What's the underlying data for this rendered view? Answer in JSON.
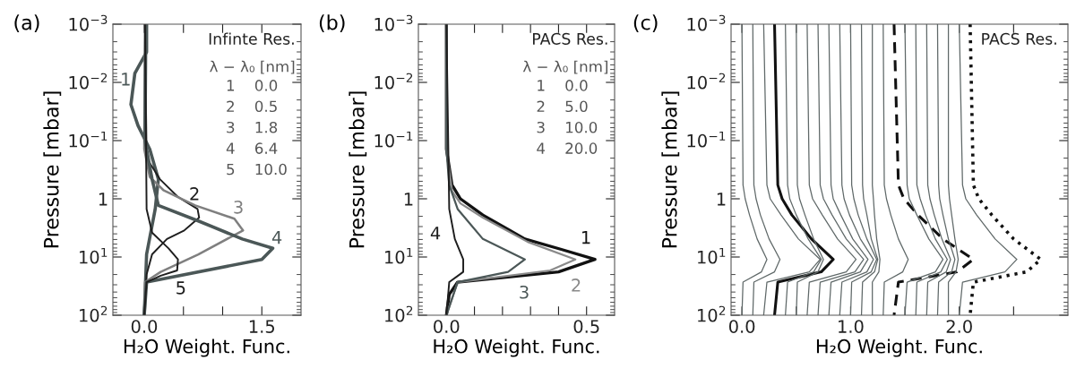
{
  "chart_data": [
    {
      "type": "line",
      "title": "(a)",
      "xlabel": "H₂O Weight. Func.",
      "ylabel": "Pressure [mbar]",
      "log": "y",
      "xlim": [
        -0.4,
        2.0
      ],
      "ylim": [
        100,
        0.001
      ],
      "xticks": [
        {
          "value": 0,
          "label": "0.0"
        },
        {
          "value": 0.5,
          "label": null
        },
        {
          "value": 1.0,
          "label": null
        },
        {
          "value": 1.5,
          "label": "1.5"
        }
      ],
      "yticks": [
        {
          "value": 100,
          "label": "10$^{2}$"
        },
        {
          "value": 10,
          "label": "10$^{1}$"
        },
        1,
        {
          "value": 0.1,
          "label": "10$^{−1}$"
        },
        {
          "value": 0.01,
          "label": "10$^{−2}$"
        },
        {
          "value": 0.001,
          "label": "10$^{−3}$"
        }
      ],
      "series": [
        {
          "color": "#4b5757",
          "x": [
            0.03,
            0.03,
            -0.12,
            -0.17,
            -0.08,
            0.07,
            0.18,
            0.14,
            0.03,
            0
          ],
          "values": [
            0.001,
            0.003,
            0.007,
            0.024,
            0.055,
            0.14,
            0.46,
            1.5,
            9,
            100
          ]
        },
        {
          "color": "#1e1e1e",
          "x": [
            0.01,
            0.03,
            0.2,
            0.43,
            0.68,
            0.7,
            0.51,
            0.29,
            0.1,
            0.03,
            0
          ],
          "values": [
            0.001,
            0.2,
            0.46,
            0.93,
            1.5,
            2.1,
            3.5,
            4.9,
            9,
            20,
            100
          ]
        },
        {
          "color": "#7f7f7f",
          "x": [
            0.01,
            0,
            0.07,
            0.25,
            0.65,
            1.15,
            1.26,
            0.69,
            0.21,
            0.01,
            0
          ],
          "values": [
            0.001,
            0.14,
            0.42,
            0.72,
            1.3,
            2.2,
            3.5,
            9,
            18,
            27,
            100
          ]
        },
        {
          "color": "#4b5757",
          "x": [
            0.02,
            0.01,
            0.1,
            0.18,
            0.69,
            1.25,
            1.64,
            1.5,
            0.03,
            0
          ],
          "values": [
            0.001,
            0.1,
            0.46,
            1.3,
            2.4,
            4.9,
            7.1,
            11,
            27,
            100
          ]
        },
        {
          "color": "#1e1e1e",
          "x": [
            0.01,
            0.03,
            0.1,
            0.31,
            0.43,
            0.42,
            0.21,
            0.03,
            0
          ],
          "values": [
            0.001,
            1.5,
            3.8,
            7.1,
            11,
            17,
            21,
            27,
            100
          ]
        }
      ],
      "annotations": [
        "1",
        "2",
        "3",
        "4",
        "5",
        "Infinte Res.",
        "λ − λ₀ [nm]",
        "1    0.0",
        "2    0.5",
        "3    1.8",
        "4    6.4",
        "5    10.0"
      ]
    },
    {
      "type": "line",
      "title": "(b)",
      "xlabel": "H₂O Weight. Func.",
      "ylabel": "Pressure [mbar]",
      "log": "y",
      "xlim": [
        -0.1,
        0.6
      ],
      "ylim": [
        100,
        0.001
      ],
      "xticks": [
        {
          "value": 0,
          "label": "0.0"
        },
        {
          "value": 0.1,
          "label": null
        },
        {
          "value": 0.2,
          "label": null
        },
        {
          "value": 0.3,
          "label": null
        },
        {
          "value": 0.4,
          "label": null
        },
        {
          "value": 0.5,
          "label": "0.5"
        }
      ],
      "yticks": [
        {
          "value": 100,
          "label": "10$^{2}$"
        },
        {
          "value": 10,
          "label": "10$^{1}$"
        },
        1,
        {
          "value": 0.1,
          "label": "10$^{−1}$"
        },
        {
          "value": 0.01,
          "label": "10$^{−2}$"
        },
        {
          "value": 0.001,
          "label": "10$^{−3}$"
        }
      ],
      "series": [
        {
          "color": "#111111",
          "x": [
            0,
            0,
            0.02,
            0.05,
            0.13,
            0.28,
            0.41,
            0.53,
            0.4,
            0.04,
            0.01,
            0
          ],
          "values": [
            0.001,
            0.14,
            0.58,
            1,
            1.9,
            4.9,
            7.4,
            11,
            18,
            27,
            44,
            100
          ]
        },
        {
          "color": "#8a8a8a",
          "x": [
            0,
            0,
            0.02,
            0.05,
            0.13,
            0.29,
            0.46,
            0.37,
            0.04,
            0
          ],
          "values": [
            0.001,
            0.14,
            0.74,
            1.2,
            2.1,
            5.5,
            11,
            17,
            27,
            100
          ]
        },
        {
          "color": "#4b5757",
          "x": [
            0,
            0,
            0.01,
            0.04,
            0.13,
            0.28,
            0.22,
            0.04,
            0
          ],
          "values": [
            0.001,
            0.14,
            0.58,
            1.5,
            4.9,
            11,
            18,
            27,
            100
          ]
        },
        {
          "color": "#1e1e1e",
          "x": [
            0,
            0.01,
            0.03,
            0.06,
            0.06,
            0.01,
            0
          ],
          "values": [
            0.001,
            1.5,
            4.9,
            11,
            18,
            27,
            100
          ]
        }
      ],
      "annotations": [
        "1",
        "2",
        "3",
        "4",
        "PACS Res.",
        "λ − λ₀ [nm]",
        "1    0.0",
        "2    5.0",
        "3    10.0",
        "4    20.0"
      ]
    },
    {
      "type": "line",
      "title": "(c)",
      "xlabel": "H₂O Weight. Func.",
      "ylabel": "Pressure [mbar]",
      "log": "y",
      "xlim": [
        -0.1,
        3.0
      ],
      "ylim": [
        100,
        0.001
      ],
      "xticks": [
        {
          "value": 0,
          "label": "0.0"
        },
        {
          "value": 0.5,
          "label": null
        },
        {
          "value": 1.0,
          "label": "1.0"
        },
        {
          "value": 1.5,
          "label": null
        },
        {
          "value": 2.0,
          "label": "2.0"
        },
        {
          "value": 2.5,
          "label": null
        }
      ],
      "yticks": [
        {
          "value": 100,
          "label": "10$^{2}$"
        },
        {
          "value": 10,
          "label": "10$^{1}$"
        },
        1,
        {
          "value": 0.1,
          "label": "10$^{−1}$"
        },
        {
          "value": 0.01,
          "label": "10$^{−2}$"
        },
        {
          "value": 0.001,
          "label": "10$^{−3}$"
        }
      ],
      "series": [
        {
          "color": "#5f6868",
          "x": [
            0,
            0.01,
            0.03,
            0.07,
            0.14,
            0.23,
            0.18,
            0.01,
            0
          ],
          "values": [
            0.001,
            0.58,
            1,
            1.9,
            4.9,
            11,
            18,
            27,
            100
          ]
        },
        {
          "color": "#5f6868",
          "x": [
            0.1,
            0.11,
            0.13,
            0.17,
            0.25,
            0.35,
            0.3,
            0.11,
            0.1
          ],
          "values": [
            0.001,
            0.58,
            1,
            1.9,
            4.9,
            11,
            18,
            27,
            100
          ]
        },
        {
          "color": "#5f6868",
          "x": [
            0.2,
            0.23,
            0.26,
            0.36,
            0.52,
            0.72,
            0.62,
            0.23,
            0.2
          ],
          "values": [
            0.001,
            0.58,
            1,
            1.9,
            4.9,
            11,
            18,
            27,
            100
          ]
        },
        {
          "color": "#111111",
          "x": [
            0.3,
            0.33,
            0.37,
            0.46,
            0.64,
            0.84,
            0.73,
            0.33,
            0.3
          ],
          "values": [
            0.001,
            0.58,
            1,
            1.9,
            4.9,
            11,
            18,
            27,
            100
          ]
        },
        {
          "color": "#5f6868",
          "x": [
            0.4,
            0.42,
            0.44,
            0.5,
            0.61,
            0.73,
            0.66,
            0.42,
            0.4
          ],
          "values": [
            0.001,
            0.58,
            1,
            1.9,
            4.9,
            11,
            18,
            27,
            100
          ]
        },
        {
          "color": "#5f6868",
          "x": [
            0.5,
            0.51,
            0.53,
            0.58,
            0.66,
            0.75,
            0.7,
            0.51,
            0.5
          ],
          "values": [
            0.001,
            0.58,
            1,
            1.9,
            4.9,
            11,
            18,
            27,
            100
          ]
        },
        {
          "color": "#5f6868",
          "x": [
            0.6,
            0.62,
            0.65,
            0.74,
            0.88,
            1.05,
            0.96,
            0.62,
            0.6
          ],
          "values": [
            0.001,
            0.58,
            1,
            1.9,
            4.9,
            11,
            18,
            27,
            100
          ]
        },
        {
          "color": "#5f6868",
          "x": [
            0.7,
            0.72,
            0.75,
            0.83,
            0.96,
            1.12,
            1.04,
            0.72,
            0.7
          ],
          "values": [
            0.001,
            0.58,
            1,
            1.9,
            4.9,
            11,
            18,
            27,
            100
          ]
        },
        {
          "color": "#5f6868",
          "x": [
            0.8,
            0.82,
            0.84,
            0.91,
            1.02,
            1.16,
            1.09,
            0.82,
            0.8
          ],
          "values": [
            0.001,
            0.58,
            1,
            1.9,
            4.9,
            11,
            18,
            27,
            100
          ]
        },
        {
          "color": "#5f6868",
          "x": [
            0.9,
            0.92,
            0.94,
            0.99,
            1.09,
            1.21,
            1.15,
            0.92,
            0.9
          ],
          "values": [
            0.001,
            0.58,
            1,
            1.9,
            4.9,
            11,
            18,
            27,
            100
          ]
        },
        {
          "color": "#5f6868",
          "x": [
            1.0,
            1.01,
            1.03,
            1.07,
            1.15,
            1.24,
            1.19,
            1.01,
            1.0
          ],
          "values": [
            0.001,
            0.58,
            1,
            1.9,
            4.9,
            11,
            18,
            27,
            100
          ]
        },
        {
          "color": "#5f6868",
          "x": [
            1.1,
            1.11,
            1.12,
            1.15,
            1.19,
            1.25,
            1.22,
            1.11,
            1.1
          ],
          "values": [
            0.001,
            0.58,
            1,
            1.9,
            4.9,
            11,
            18,
            27,
            100
          ]
        },
        {
          "color": "#5f6868",
          "x": [
            1.2,
            1.2,
            1.21,
            1.22,
            1.24,
            1.27,
            1.26,
            1.2,
            1.2
          ],
          "values": [
            0.001,
            0.58,
            1,
            1.9,
            4.9,
            11,
            18,
            27,
            100
          ]
        },
        {
          "color": "#5f6868",
          "x": [
            1.3,
            1.31,
            1.33,
            1.37,
            1.44,
            1.53,
            1.48,
            1.31,
            1.3
          ],
          "values": [
            0.001,
            0.58,
            1,
            1.9,
            4.9,
            11,
            18,
            27,
            100
          ]
        },
        {
          "color": "#111111",
          "line_style": "dashed",
          "x": [
            1.4,
            1.44,
            1.49,
            1.62,
            1.85,
            2.13,
            1.98,
            1.44,
            1.4
          ],
          "values": [
            0.001,
            0.58,
            1,
            1.9,
            4.9,
            11,
            18,
            27,
            100
          ]
        },
        {
          "color": "#5f6868",
          "x": [
            1.5,
            1.52,
            1.54,
            1.61,
            1.72,
            1.85,
            1.78,
            1.52,
            1.5
          ],
          "values": [
            0.001,
            0.58,
            1,
            1.9,
            4.9,
            11,
            18,
            27,
            100
          ]
        },
        {
          "color": "#5f6868",
          "x": [
            1.6,
            1.61,
            1.64,
            1.69,
            1.78,
            1.89,
            1.83,
            1.61,
            1.6
          ],
          "values": [
            0.001,
            0.58,
            1,
            1.9,
            4.9,
            11,
            18,
            27,
            100
          ]
        },
        {
          "color": "#5f6868",
          "x": [
            1.7,
            1.71,
            1.73,
            1.77,
            1.84,
            1.92,
            1.88,
            1.71,
            1.7
          ],
          "values": [
            0.001,
            0.58,
            1,
            1.9,
            4.9,
            11,
            18,
            27,
            100
          ]
        },
        {
          "color": "#5f6868",
          "x": [
            1.8,
            1.81,
            1.82,
            1.85,
            1.9,
            1.96,
            1.93,
            1.81,
            1.8
          ],
          "values": [
            0.001,
            0.58,
            1,
            1.9,
            4.9,
            11,
            18,
            27,
            100
          ]
        },
        {
          "color": "#5f6868",
          "x": [
            1.9,
            1.9,
            1.91,
            1.93,
            1.96,
            1.99,
            1.97,
            1.9,
            1.9
          ],
          "values": [
            0.001,
            0.58,
            1,
            1.9,
            4.9,
            11,
            18,
            27,
            100
          ]
        },
        {
          "color": "#5f6868",
          "x": [
            2.0,
            2.03,
            2.06,
            2.16,
            2.33,
            2.53,
            2.42,
            2.03,
            2.0
          ],
          "values": [
            0.001,
            0.58,
            1,
            1.9,
            4.9,
            11,
            18,
            27,
            100
          ]
        },
        {
          "color": "#111111",
          "line_style": "dotted",
          "x": [
            2.1,
            2.13,
            2.18,
            2.3,
            2.5,
            2.75,
            2.62,
            2.13,
            2.1
          ],
          "values": [
            0.001,
            0.58,
            1,
            1.9,
            4.9,
            11,
            18,
            27,
            100
          ]
        }
      ],
      "annotations": [
        "PACS Res."
      ]
    }
  ]
}
